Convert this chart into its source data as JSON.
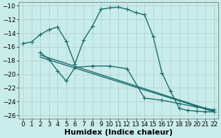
{
  "xlabel": "Humidex (Indice chaleur)",
  "background_color": "#c8ecea",
  "grid_color": "#b0cccc",
  "line_color": "#1a6b6b",
  "xlim": [
    -0.5,
    22.5
  ],
  "ylim": [
    -26.5,
    -9.5
  ],
  "xticks": [
    0,
    1,
    2,
    3,
    4,
    5,
    6,
    7,
    8,
    9,
    10,
    11,
    12,
    13,
    14,
    15,
    16,
    17,
    18,
    19,
    20,
    21,
    22
  ],
  "yticks": [
    -26,
    -24,
    -22,
    -20,
    -18,
    -16,
    -14,
    -12,
    -10
  ],
  "curve1_x": [
    0,
    1,
    2,
    3,
    4,
    5,
    6,
    7,
    8,
    9,
    10,
    11,
    12,
    13,
    14,
    15,
    16,
    17,
    18,
    19,
    20,
    21,
    22
  ],
  "curve1_y": [
    -15.5,
    -15.3,
    -14.2,
    -13.5,
    -13.1,
    -15.2,
    -18.5,
    -15.0,
    -13.0,
    -10.5,
    -10.3,
    -10.2,
    -10.5,
    -11.0,
    -11.3,
    -14.5,
    -19.8,
    -22.5,
    -25.0,
    -25.3,
    -25.4,
    -25.5,
    -25.5
  ],
  "curve2_x": [
    2,
    3,
    4,
    5,
    6,
    8,
    10,
    12,
    14,
    16,
    18,
    20,
    21,
    22
  ],
  "curve2_y": [
    -16.8,
    -17.8,
    -19.5,
    -21.0,
    -19.0,
    -18.8,
    -18.8,
    -19.2,
    -23.5,
    -23.8,
    -24.3,
    -24.8,
    -25.0,
    -25.2
  ],
  "curve3_x": [
    2,
    22
  ],
  "curve3_y": [
    -17.2,
    -25.4
  ],
  "curve4_x": [
    2,
    22
  ],
  "curve4_y": [
    -17.5,
    -25.5
  ],
  "marker_size": 4,
  "linewidth": 1.0,
  "xlabel_fontsize": 8,
  "tick_fontsize": 6.5
}
